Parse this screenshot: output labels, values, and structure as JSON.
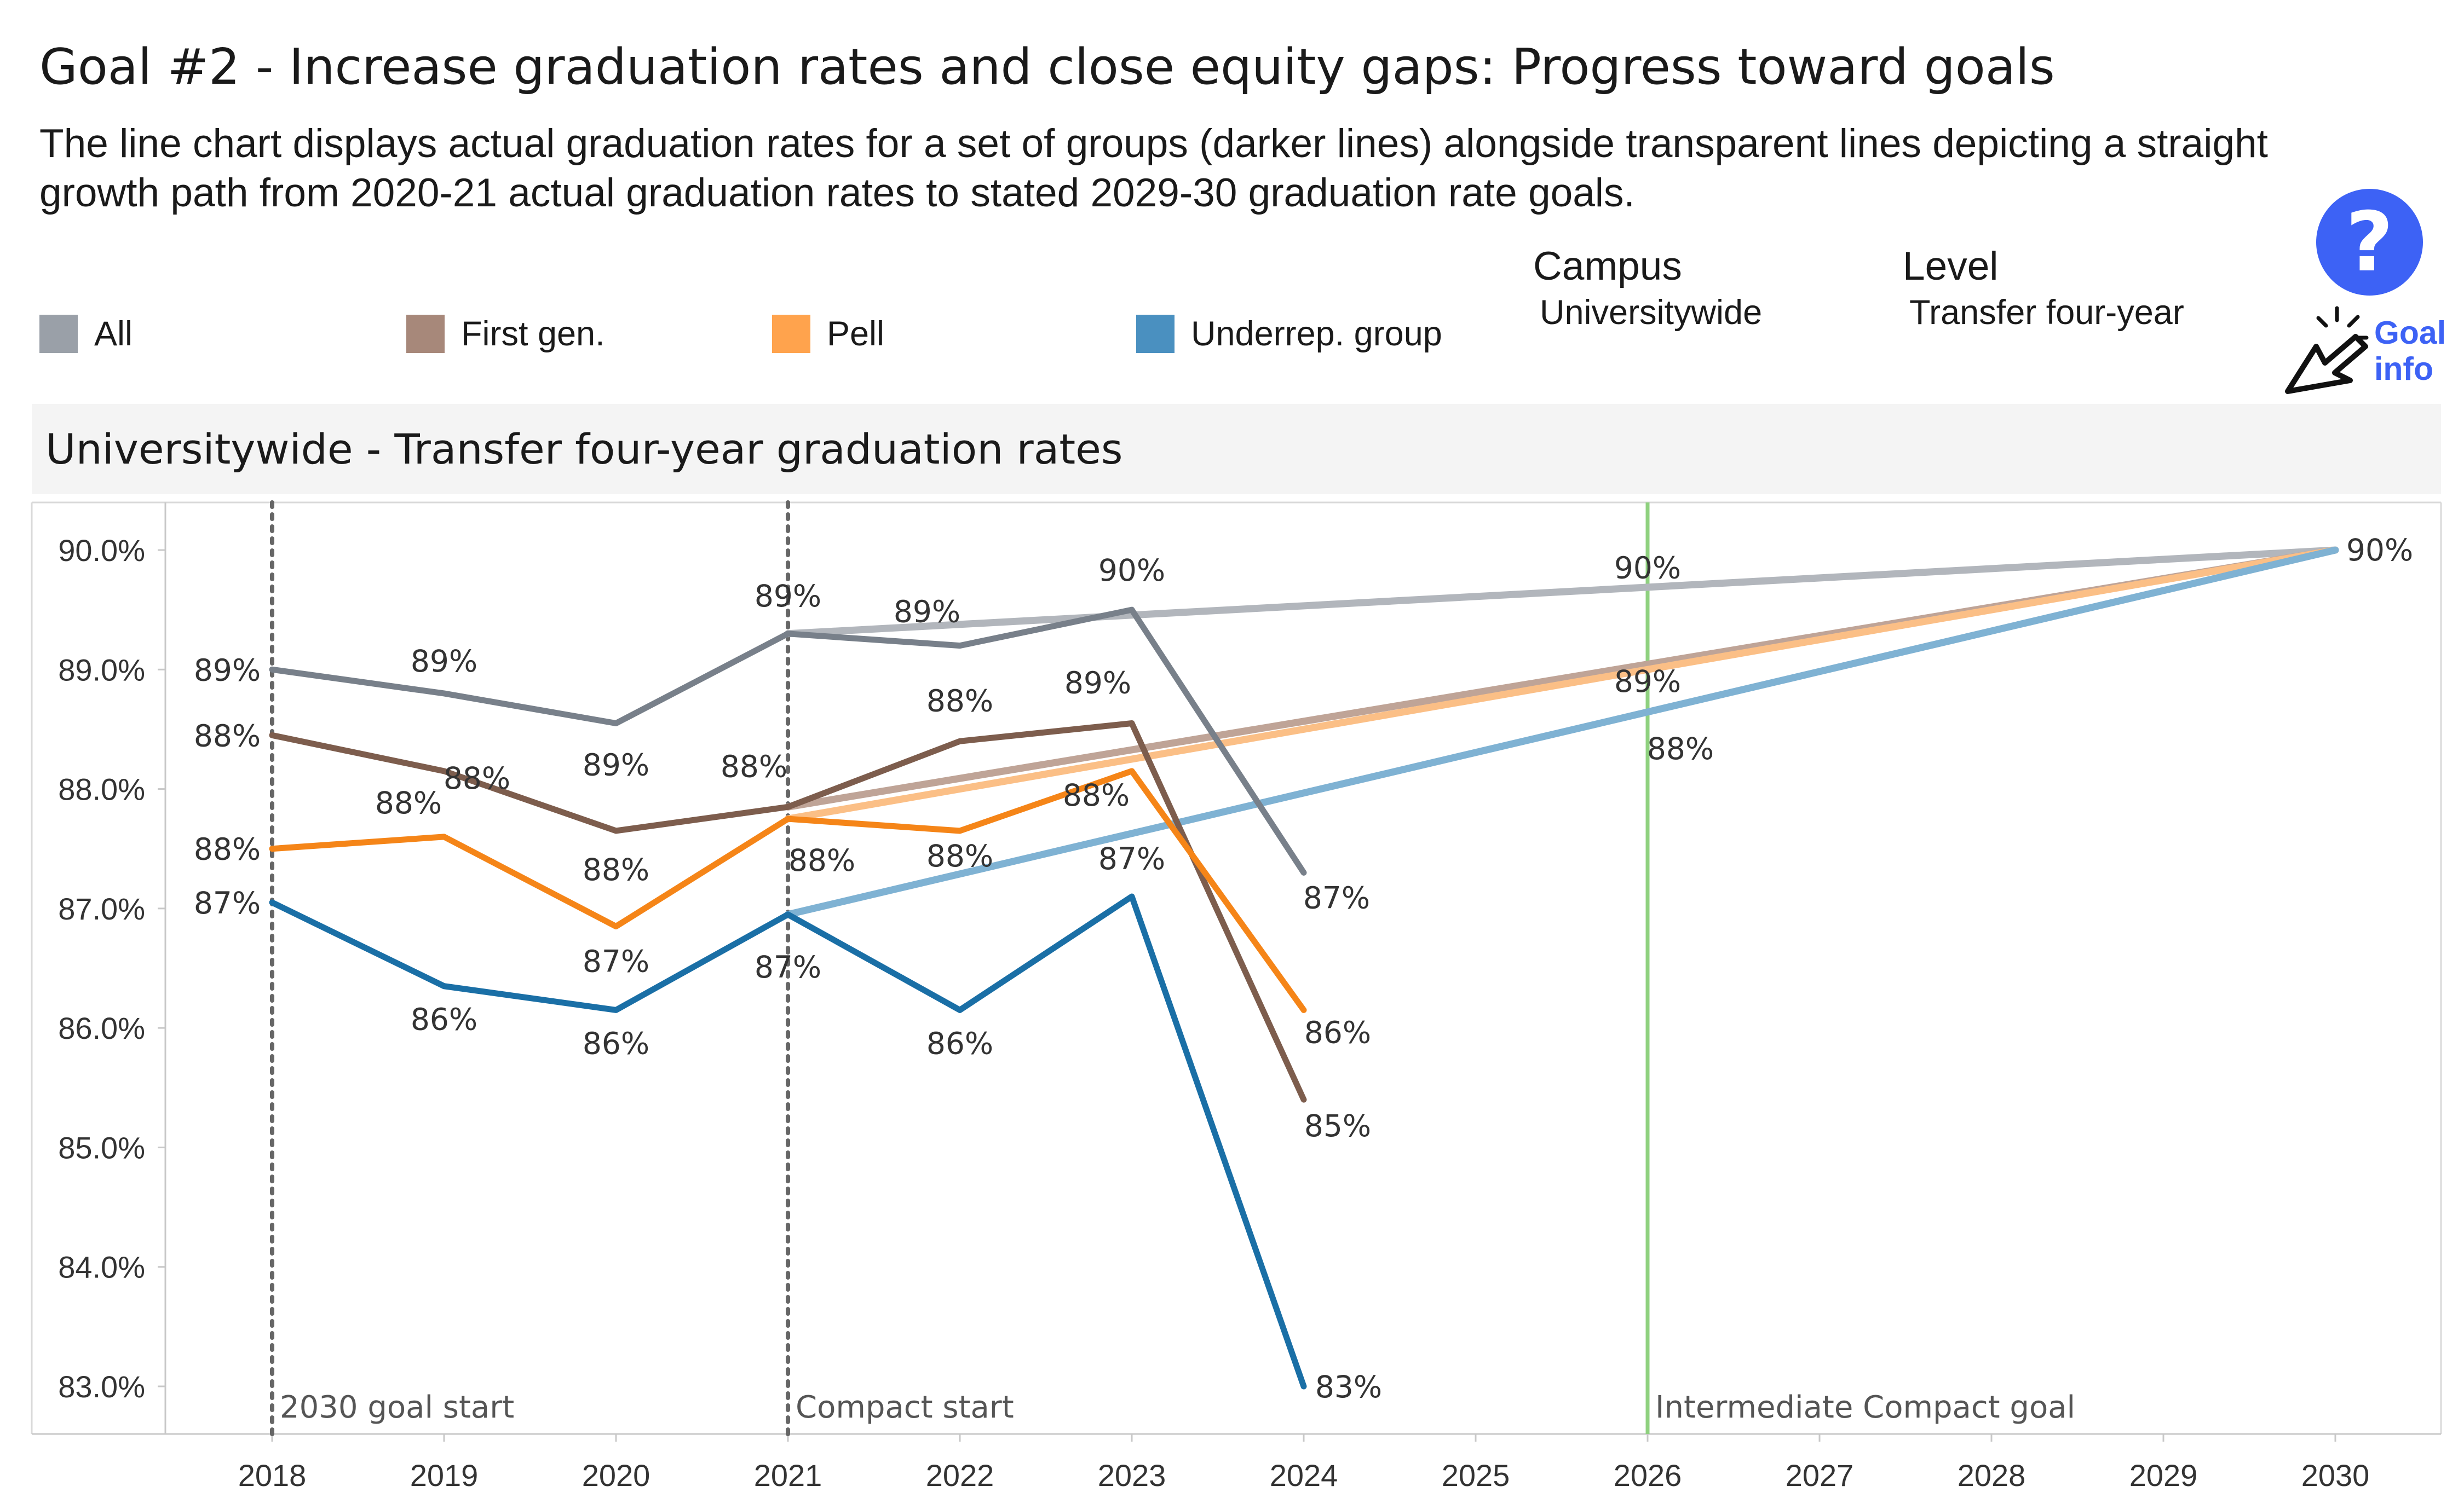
{
  "page": {
    "title": "Goal #2 - Increase graduation rates and close equity gaps: Progress toward goals",
    "description": "The line chart displays actual graduation rates for a set of groups (darker lines) alongside transparent lines depicting a straight growth path from 2020-21 actual graduation rates to stated 2029-30 graduation rate goals."
  },
  "legend": [
    {
      "label": "All",
      "color": "#9aa0a8"
    },
    {
      "label": "First gen.",
      "color": "#a7887a"
    },
    {
      "label": "Pell",
      "color": "#ffa34d"
    },
    {
      "label": "Underrep. group",
      "color": "#4a90c0"
    }
  ],
  "filters": {
    "campus": {
      "label": "Campus",
      "value": "Universitywide"
    },
    "level": {
      "label": "Level",
      "value": "Transfer four-year"
    }
  },
  "help": {
    "icon": "question-icon",
    "symbol": "?",
    "goal_info_line1": "Goal",
    "goal_info_line2": "info",
    "accent": "#3d62f5"
  },
  "chart_header": {
    "title": "Universitywide - Transfer four-year graduation rates"
  },
  "chart_data": {
    "type": "line",
    "title": "Universitywide - Transfer four-year graduation rates",
    "xlabel": "",
    "ylabel": "",
    "x_ticks": [
      2018,
      2019,
      2020,
      2021,
      2022,
      2023,
      2024,
      2025,
      2026,
      2027,
      2028,
      2029,
      2030
    ],
    "y_ticks": [
      83.0,
      84.0,
      85.0,
      86.0,
      87.0,
      88.0,
      89.0,
      90.0
    ],
    "y_tick_labels": [
      "83.0%",
      "84.0%",
      "85.0%",
      "86.0%",
      "87.0%",
      "88.0%",
      "89.0%",
      "90.0%"
    ],
    "xlim": [
      2017.3,
      2030.6
    ],
    "ylim": [
      82.6,
      90.45
    ],
    "grid": false,
    "series": [
      {
        "name": "All",
        "color": "#78808a",
        "x": [
          2018,
          2019,
          2020,
          2021,
          2022,
          2023,
          2024
        ],
        "values": [
          89.0,
          88.8,
          88.55,
          89.3,
          89.2,
          89.5,
          87.3
        ],
        "labels": [
          "89%",
          "89%",
          "89%",
          "89%",
          "89%",
          "90%",
          "87%"
        ]
      },
      {
        "name": "First gen.",
        "color": "#7d5d4d",
        "x": [
          2018,
          2019,
          2020,
          2021,
          2022,
          2023,
          2024
        ],
        "values": [
          88.45,
          88.15,
          87.65,
          87.85,
          88.4,
          88.55,
          85.4
        ],
        "labels": [
          "88%",
          "88%",
          "88%",
          "88%",
          "88%",
          "89%",
          "85%"
        ]
      },
      {
        "name": "Pell",
        "color": "#f58518",
        "x": [
          2018,
          2019,
          2020,
          2021,
          2022,
          2023,
          2024
        ],
        "values": [
          87.5,
          87.6,
          86.85,
          87.75,
          87.65,
          88.15,
          86.15
        ],
        "labels": [
          "88%",
          "88%",
          "87%",
          "88%",
          "88%",
          "88%",
          "86%"
        ]
      },
      {
        "name": "Underrep. group",
        "color": "#1a6fa6",
        "x": [
          2018,
          2019,
          2020,
          2021,
          2022,
          2023,
          2024
        ],
        "values": [
          87.05,
          86.35,
          86.15,
          86.95,
          86.15,
          87.1,
          83.0
        ],
        "labels": [
          "87%",
          "86%",
          "86%",
          "87%",
          "86%",
          "87%",
          "83%"
        ]
      }
    ],
    "goal_paths": [
      {
        "group": "All",
        "color": "#b2b6bc",
        "x": [
          2021,
          2030
        ],
        "values": [
          89.3,
          90.0
        ]
      },
      {
        "group": "First gen.",
        "color": "#bfa497",
        "x": [
          2021,
          2030
        ],
        "values": [
          87.85,
          90.0
        ]
      },
      {
        "group": "Pell",
        "color": "#fbbf86",
        "x": [
          2021,
          2030
        ],
        "values": [
          87.75,
          90.0
        ]
      },
      {
        "group": "Underrep. group",
        "color": "#7fb2d3",
        "x": [
          2021,
          2030
        ],
        "values": [
          86.95,
          90.0
        ]
      }
    ],
    "intermediate_labels": [
      "90%",
      "89%",
      "88%"
    ],
    "end_label": "90%",
    "reference_lines": [
      {
        "x": 2018,
        "label": "2030 goal start",
        "style": "dotted",
        "color": "#666666"
      },
      {
        "x": 2021,
        "label": "Compact start",
        "style": "dotted",
        "color": "#666666"
      },
      {
        "x": 2026,
        "label": "Intermediate Compact goal",
        "style": "solid",
        "color": "#8fd17f"
      }
    ]
  }
}
